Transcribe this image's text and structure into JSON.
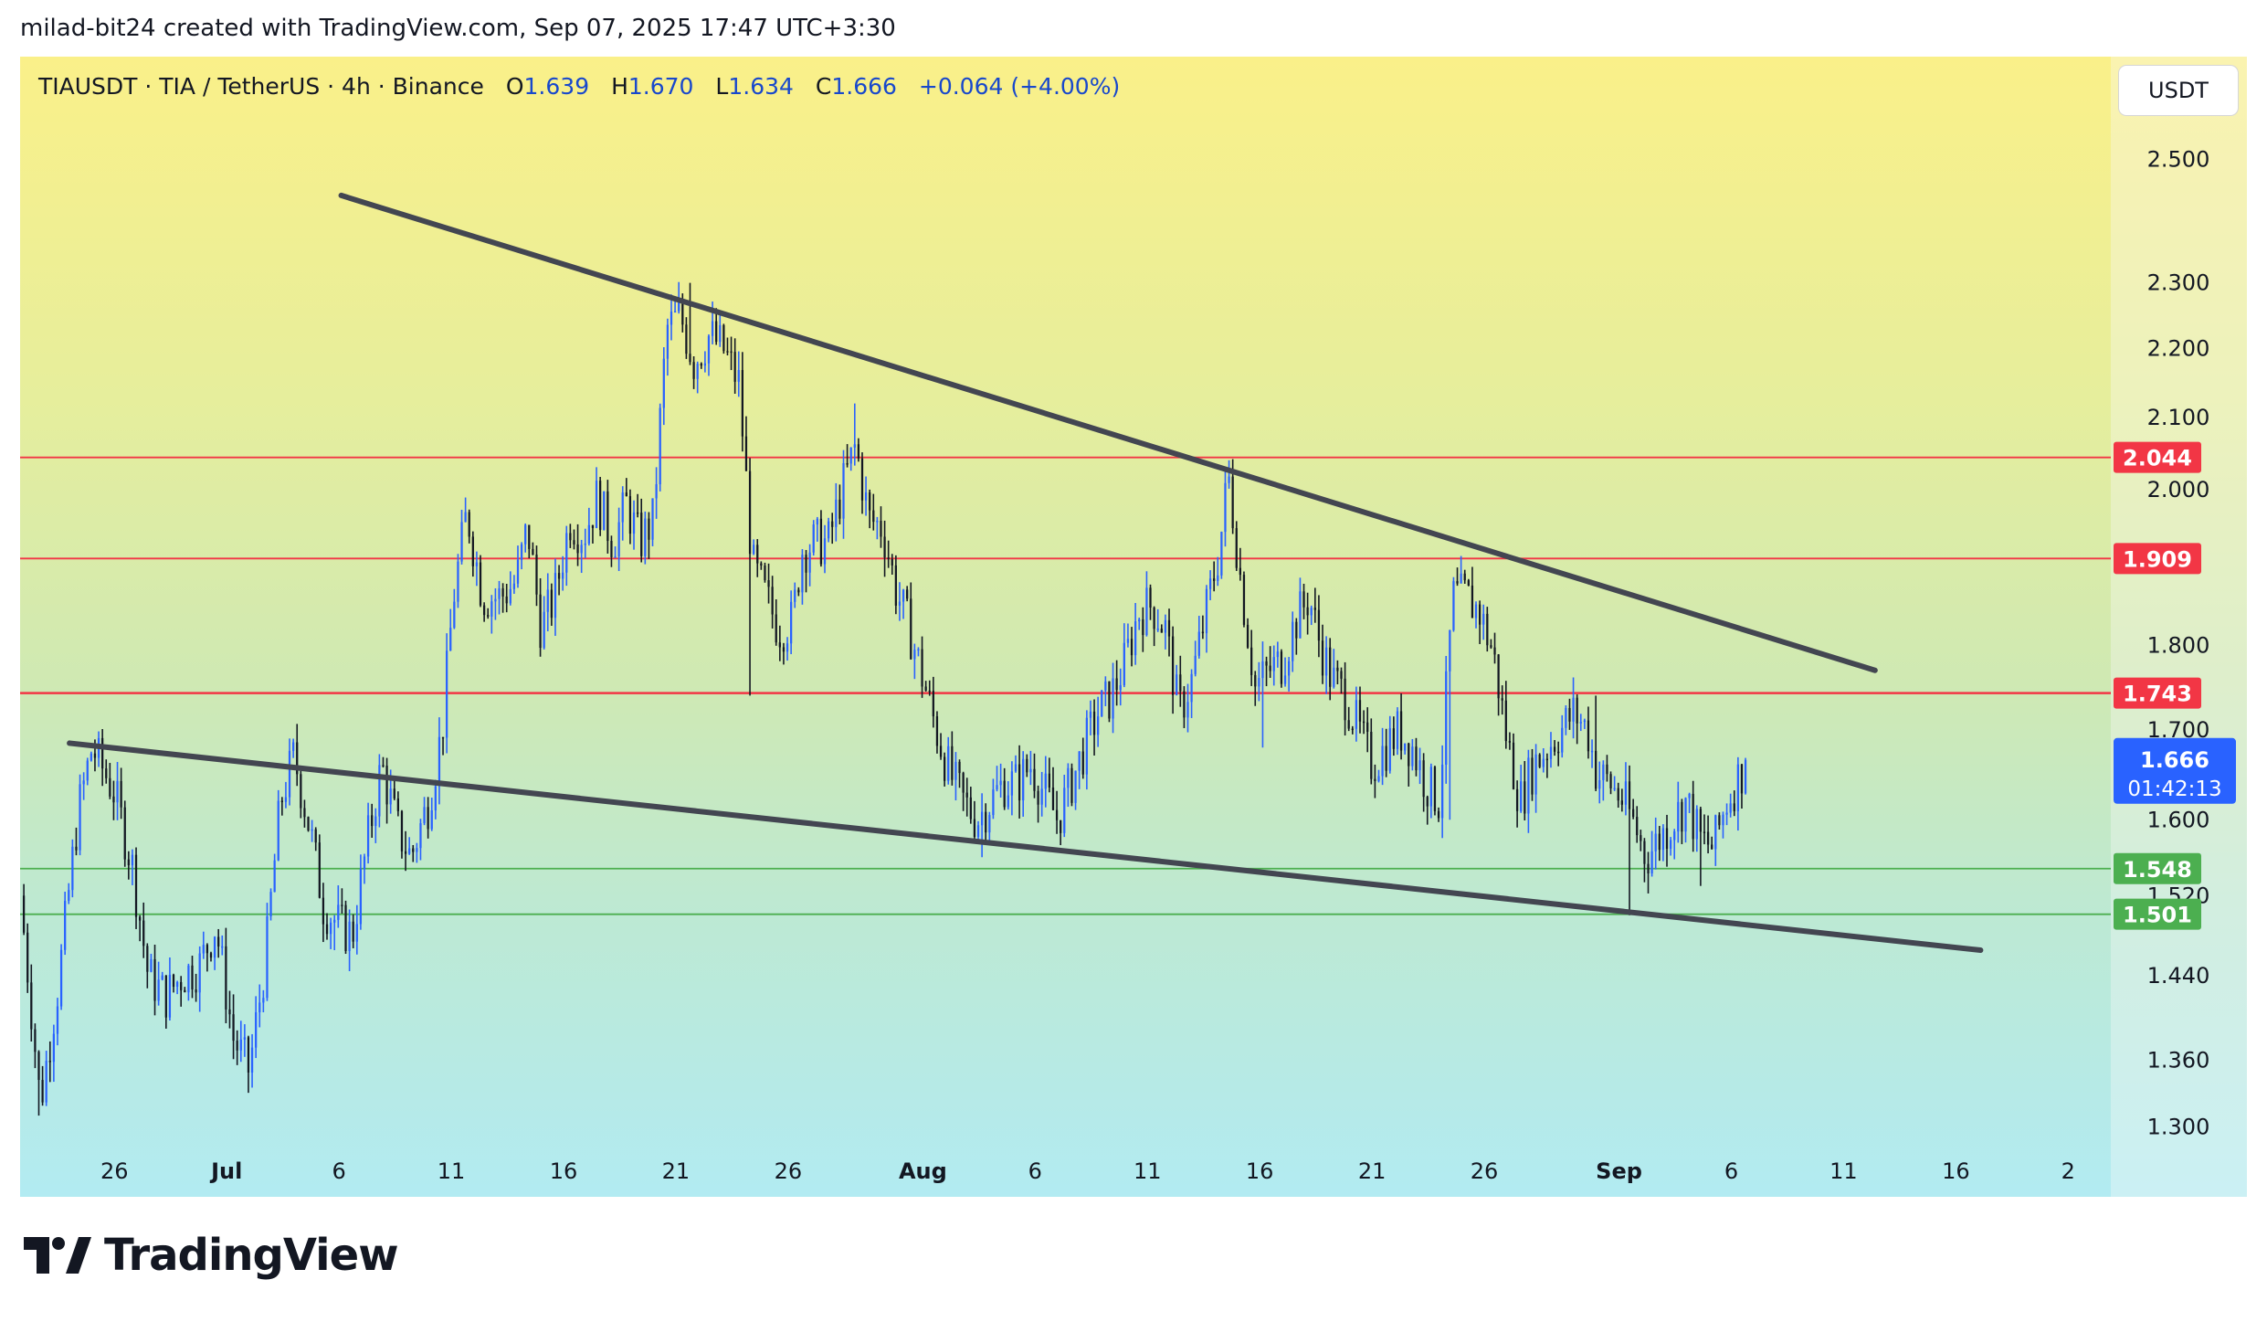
{
  "attribution": "milad-bit24 created with TradingView.com, Sep 07, 2025 17:47 UTC+3:30",
  "header": {
    "symbol": "TIAUSDT · TIA / TetherUS · 4h · Binance",
    "open_label": "O",
    "open": "1.639",
    "high_label": "H",
    "high": "1.670",
    "low_label": "L",
    "low": "1.634",
    "close_label": "C",
    "close": "1.666",
    "change": "+0.064 (+4.00%)"
  },
  "currency_button": "USDT",
  "brand": "TradingView",
  "colors": {
    "up": "#2962ff",
    "down": "#131722",
    "resistance": "#f23645",
    "support": "#4caf50",
    "trendline": "#434651",
    "price": "#2962ff"
  },
  "chart_data": {
    "type": "candlestick",
    "interval": "4h",
    "y_ticks": [
      2.5,
      2.3,
      2.2,
      2.1,
      2.0,
      1.8,
      1.7,
      1.6,
      1.52,
      1.44,
      1.36,
      1.3
    ],
    "y_tick_labels": [
      "2.500",
      "2.300",
      "2.200",
      "2.100",
      "2.000",
      "1.800",
      "1.700",
      "1.600",
      "1.520",
      "1.440",
      "1.360",
      "1.300"
    ],
    "ylim": [
      1.24,
      2.68
    ],
    "x_tick_labels": [
      {
        "label": "26",
        "day": -5
      },
      {
        "label": "Jul",
        "day": 0,
        "bold": true
      },
      {
        "label": "6",
        "day": 5
      },
      {
        "label": "11",
        "day": 10
      },
      {
        "label": "16",
        "day": 15
      },
      {
        "label": "21",
        "day": 20
      },
      {
        "label": "26",
        "day": 25
      },
      {
        "label": "Aug",
        "day": 31,
        "bold": true
      },
      {
        "label": "6",
        "day": 36
      },
      {
        "label": "11",
        "day": 41
      },
      {
        "label": "16",
        "day": 46
      },
      {
        "label": "21",
        "day": 51
      },
      {
        "label": "26",
        "day": 56
      },
      {
        "label": "Sep",
        "day": 62,
        "bold": true
      },
      {
        "label": "6",
        "day": 67
      },
      {
        "label": "11",
        "day": 72
      },
      {
        "label": "16",
        "day": 77
      },
      {
        "label": "2",
        "day": 82
      }
    ],
    "xlim_days": [
      -9.2,
      83.9
    ],
    "horizontal_levels": [
      {
        "value": 2.044,
        "label": "2.044",
        "kind": "resistance"
      },
      {
        "value": 1.909,
        "label": "1.909",
        "kind": "resistance"
      },
      {
        "value": 1.743,
        "label": "1.743",
        "kind": "resistance"
      },
      {
        "value": 1.548,
        "label": "1.548",
        "kind": "support"
      },
      {
        "value": 1.501,
        "label": "1.501",
        "kind": "support"
      }
    ],
    "trendlines": [
      {
        "name": "upper-trendline",
        "from": {
          "day": 5.1,
          "price": 2.44
        },
        "to": {
          "day": 73.4,
          "price": 1.77
        }
      },
      {
        "name": "lower-trendline",
        "from": {
          "day": -7.0,
          "price": 1.685
        },
        "to": {
          "day": 78.1,
          "price": 1.465
        }
      }
    ],
    "current_price": {
      "value": 1.666,
      "label": "1.666",
      "countdown": "01:42:13"
    },
    "path_start_day": -9.2,
    "path_end_day": 67.6,
    "price_path": [
      [
        -9.2,
        1.52
      ],
      [
        -8.3,
        1.32
      ],
      [
        -7.5,
        1.43
      ],
      [
        -6.6,
        1.61
      ],
      [
        -6.0,
        1.68
      ],
      [
        -5.0,
        1.63
      ],
      [
        -4.2,
        1.55
      ],
      [
        -3.5,
        1.44
      ],
      [
        -2.7,
        1.42
      ],
      [
        -2.0,
        1.44
      ],
      [
        -1.2,
        1.45
      ],
      [
        -0.5,
        1.49
      ],
      [
        0.3,
        1.38
      ],
      [
        1.0,
        1.35
      ],
      [
        1.7,
        1.45
      ],
      [
        2.4,
        1.62
      ],
      [
        3.0,
        1.67
      ],
      [
        3.7,
        1.59
      ],
      [
        4.3,
        1.51
      ],
      [
        5.0,
        1.49
      ],
      [
        5.6,
        1.48
      ],
      [
        6.3,
        1.58
      ],
      [
        6.9,
        1.66
      ],
      [
        7.6,
        1.59
      ],
      [
        8.2,
        1.56
      ],
      [
        9.0,
        1.62
      ],
      [
        9.6,
        1.7
      ],
      [
        10.1,
        1.86
      ],
      [
        10.7,
        1.97
      ],
      [
        11.4,
        1.86
      ],
      [
        12.2,
        1.86
      ],
      [
        12.9,
        1.88
      ],
      [
        13.4,
        1.95
      ],
      [
        14.0,
        1.82
      ],
      [
        14.6,
        1.86
      ],
      [
        15.3,
        1.96
      ],
      [
        15.9,
        1.94
      ],
      [
        16.5,
        1.99
      ],
      [
        17.2,
        1.93
      ],
      [
        17.8,
        1.98
      ],
      [
        18.4,
        1.93
      ],
      [
        19.0,
        1.96
      ],
      [
        19.6,
        2.23
      ],
      [
        20.2,
        2.25
      ],
      [
        20.8,
        2.18
      ],
      [
        21.5,
        2.22
      ],
      [
        22.1,
        2.2
      ],
      [
        22.8,
        2.15
      ],
      [
        23.4,
        1.9
      ],
      [
        24.0,
        1.86
      ],
      [
        24.6,
        1.82
      ],
      [
        25.2,
        1.83
      ],
      [
        25.6,
        1.92
      ],
      [
        26.2,
        1.93
      ],
      [
        26.8,
        1.93
      ],
      [
        27.4,
        2.0
      ],
      [
        28.0,
        2.06
      ],
      [
        28.6,
        1.96
      ],
      [
        29.2,
        1.95
      ],
      [
        29.8,
        1.87
      ],
      [
        30.4,
        1.82
      ],
      [
        31.0,
        1.76
      ],
      [
        31.6,
        1.7
      ],
      [
        32.2,
        1.65
      ],
      [
        32.8,
        1.62
      ],
      [
        33.4,
        1.6
      ],
      [
        34.0,
        1.62
      ],
      [
        34.6,
        1.64
      ],
      [
        35.2,
        1.64
      ],
      [
        35.8,
        1.66
      ],
      [
        36.4,
        1.63
      ],
      [
        37.0,
        1.6
      ],
      [
        37.6,
        1.64
      ],
      [
        38.2,
        1.68
      ],
      [
        38.8,
        1.72
      ],
      [
        39.4,
        1.74
      ],
      [
        40.0,
        1.78
      ],
      [
        40.6,
        1.84
      ],
      [
        41.2,
        1.85
      ],
      [
        41.8,
        1.82
      ],
      [
        42.4,
        1.72
      ],
      [
        43.0,
        1.76
      ],
      [
        43.6,
        1.84
      ],
      [
        44.2,
        1.92
      ],
      [
        44.6,
        2.02
      ],
      [
        45.2,
        1.87
      ],
      [
        45.8,
        1.75
      ],
      [
        46.4,
        1.77
      ],
      [
        47.0,
        1.78
      ],
      [
        47.6,
        1.83
      ],
      [
        48.2,
        1.86
      ],
      [
        48.6,
        1.81
      ],
      [
        49.2,
        1.76
      ],
      [
        49.8,
        1.74
      ],
      [
        50.4,
        1.7
      ],
      [
        51.0,
        1.66
      ],
      [
        51.6,
        1.68
      ],
      [
        52.2,
        1.7
      ],
      [
        52.8,
        1.68
      ],
      [
        53.4,
        1.64
      ],
      [
        54.0,
        1.62
      ],
      [
        54.6,
        1.86
      ],
      [
        55.2,
        1.86
      ],
      [
        55.8,
        1.84
      ],
      [
        56.4,
        1.79
      ],
      [
        57.0,
        1.69
      ],
      [
        57.6,
        1.62
      ],
      [
        58.2,
        1.66
      ],
      [
        58.8,
        1.68
      ],
      [
        59.4,
        1.7
      ],
      [
        60.0,
        1.72
      ],
      [
        60.6,
        1.7
      ],
      [
        61.0,
        1.65
      ],
      [
        61.6,
        1.64
      ],
      [
        62.2,
        1.62
      ],
      [
        62.6,
        1.6
      ],
      [
        63.2,
        1.56
      ],
      [
        63.8,
        1.58
      ],
      [
        64.4,
        1.6
      ],
      [
        65.0,
        1.62
      ],
      [
        65.6,
        1.58
      ],
      [
        66.2,
        1.57
      ],
      [
        66.8,
        1.62
      ],
      [
        67.2,
        1.64
      ],
      [
        67.6,
        1.66
      ]
    ],
    "extremes": [
      [
        -8.3,
        1.31
      ],
      [
        1.2,
        1.335
      ],
      [
        4.8,
        1.465
      ],
      [
        20.6,
        2.3
      ],
      [
        23.3,
        1.74
      ],
      [
        27.9,
        2.12
      ],
      [
        33.7,
        1.56
      ],
      [
        44.6,
        2.04
      ],
      [
        46.1,
        1.68
      ],
      [
        54.5,
        1.6
      ],
      [
        55.0,
        1.91
      ],
      [
        60.9,
        1.74
      ],
      [
        62.5,
        1.5
      ],
      [
        64.2,
        1.55
      ],
      [
        65.6,
        1.53
      ]
    ]
  }
}
